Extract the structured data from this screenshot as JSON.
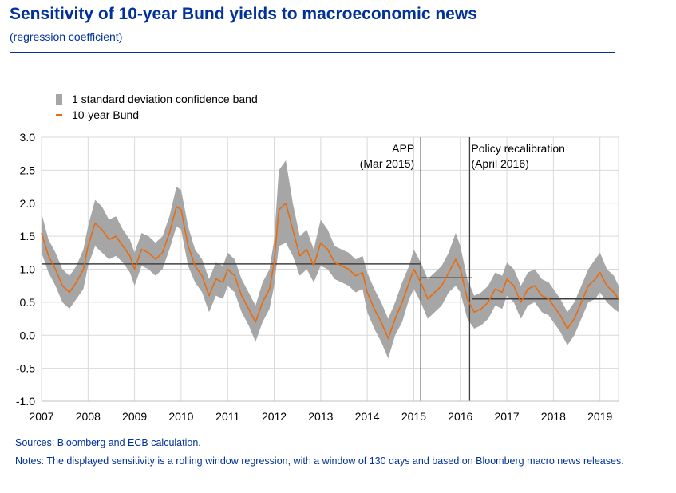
{
  "header": {
    "title": "Sensitivity of 10-year Bund yields to macroeconomic news",
    "subtitle": "(regression coefficient)"
  },
  "legend": {
    "band_label": "1 standard deviation confidence band",
    "line_label": "10-year Bund"
  },
  "footer": {
    "sources": "Sources: Bloomberg and ECB calculation.",
    "notes": "Notes: The displayed sensitivity is a rolling window regression, with a window of 130 days and based on Bloomberg macro news releases."
  },
  "colors": {
    "line": "#e86c0e",
    "band": "#a6a6a6",
    "mean": "#404040",
    "text_blue": "#003299"
  },
  "chart_data": {
    "type": "line",
    "title": "Sensitivity of 10-year Bund yields to macroeconomic news",
    "subtitle": "(regression coefficient)",
    "xlabel": "",
    "ylabel": "",
    "ylim": [
      -1.0,
      3.0
    ],
    "y_ticks": [
      "3.0",
      "2.5",
      "2.0",
      "1.5",
      "1.0",
      "0.5",
      "0.0",
      "-0.5",
      "-1.0"
    ],
    "x_ticks": [
      "2007",
      "2008",
      "2009",
      "2010",
      "2011",
      "2012",
      "2013",
      "2014",
      "2015",
      "2016",
      "2017",
      "2018",
      "2019"
    ],
    "grid": true,
    "legend_position": "top-left",
    "series": [
      {
        "name": "10-year Bund",
        "x": [
          2007.0,
          2007.15,
          2007.3,
          2007.45,
          2007.6,
          2007.75,
          2007.9,
          2008.0,
          2008.15,
          2008.3,
          2008.45,
          2008.6,
          2008.75,
          2008.9,
          2009.0,
          2009.15,
          2009.3,
          2009.45,
          2009.6,
          2009.75,
          2009.9,
          2010.0,
          2010.15,
          2010.3,
          2010.45,
          2010.6,
          2010.75,
          2010.9,
          2011.0,
          2011.15,
          2011.3,
          2011.45,
          2011.6,
          2011.75,
          2011.9,
          2012.0,
          2012.1,
          2012.25,
          2012.4,
          2012.55,
          2012.7,
          2012.85,
          2013.0,
          2013.15,
          2013.3,
          2013.45,
          2013.6,
          2013.75,
          2013.9,
          2014.0,
          2014.15,
          2014.3,
          2014.45,
          2014.6,
          2014.75,
          2014.9,
          2015.0,
          2015.15,
          2015.3,
          2015.45,
          2015.6,
          2015.75,
          2015.9,
          2016.0,
          2016.15,
          2016.3,
          2016.45,
          2016.6,
          2016.75,
          2016.9,
          2017.0,
          2017.15,
          2017.3,
          2017.45,
          2017.6,
          2017.75,
          2017.9,
          2018.0,
          2018.15,
          2018.3,
          2018.45,
          2018.6,
          2018.75,
          2018.9,
          2019.0,
          2019.15,
          2019.3,
          2019.4
        ],
        "values": [
          1.55,
          1.2,
          1.0,
          0.75,
          0.65,
          0.8,
          1.0,
          1.35,
          1.7,
          1.6,
          1.45,
          1.5,
          1.35,
          1.2,
          1.0,
          1.3,
          1.25,
          1.15,
          1.25,
          1.55,
          1.95,
          1.9,
          1.35,
          1.05,
          0.9,
          0.6,
          0.85,
          0.8,
          1.0,
          0.9,
          0.6,
          0.4,
          0.2,
          0.5,
          0.7,
          1.1,
          1.9,
          2.0,
          1.6,
          1.2,
          1.3,
          1.05,
          1.4,
          1.3,
          1.1,
          1.05,
          1.0,
          0.9,
          0.95,
          0.65,
          0.4,
          0.2,
          -0.05,
          0.25,
          0.5,
          0.8,
          1.0,
          0.8,
          0.55,
          0.65,
          0.75,
          0.95,
          1.15,
          1.0,
          0.55,
          0.35,
          0.4,
          0.5,
          0.7,
          0.65,
          0.85,
          0.75,
          0.5,
          0.7,
          0.75,
          0.6,
          0.55,
          0.45,
          0.3,
          0.1,
          0.25,
          0.5,
          0.75,
          0.85,
          0.95,
          0.75,
          0.65,
          0.55
        ]
      },
      {
        "name": "1 standard deviation confidence band",
        "x": [
          2007.0,
          2007.15,
          2007.3,
          2007.45,
          2007.6,
          2007.75,
          2007.9,
          2008.0,
          2008.15,
          2008.3,
          2008.45,
          2008.6,
          2008.75,
          2008.9,
          2009.0,
          2009.15,
          2009.3,
          2009.45,
          2009.6,
          2009.75,
          2009.9,
          2010.0,
          2010.15,
          2010.3,
          2010.45,
          2010.6,
          2010.75,
          2010.9,
          2011.0,
          2011.15,
          2011.3,
          2011.45,
          2011.6,
          2011.75,
          2011.9,
          2012.0,
          2012.1,
          2012.25,
          2012.4,
          2012.55,
          2012.7,
          2012.85,
          2013.0,
          2013.15,
          2013.3,
          2013.45,
          2013.6,
          2013.75,
          2013.9,
          2014.0,
          2014.15,
          2014.3,
          2014.45,
          2014.6,
          2014.75,
          2014.9,
          2015.0,
          2015.15,
          2015.3,
          2015.45,
          2015.6,
          2015.75,
          2015.9,
          2016.0,
          2016.15,
          2016.3,
          2016.45,
          2016.6,
          2016.75,
          2016.9,
          2017.0,
          2017.15,
          2017.3,
          2017.45,
          2017.6,
          2017.75,
          2017.9,
          2018.0,
          2018.15,
          2018.3,
          2018.45,
          2018.6,
          2018.75,
          2018.9,
          2019.0,
          2019.15,
          2019.3,
          2019.4
        ],
        "upper": [
          1.85,
          1.45,
          1.25,
          1.0,
          0.9,
          1.05,
          1.3,
          1.65,
          2.05,
          1.95,
          1.75,
          1.8,
          1.6,
          1.45,
          1.25,
          1.55,
          1.5,
          1.4,
          1.5,
          1.8,
          2.25,
          2.2,
          1.65,
          1.3,
          1.15,
          0.85,
          1.1,
          1.05,
          1.25,
          1.15,
          0.85,
          0.65,
          0.45,
          0.8,
          1.0,
          1.45,
          2.5,
          2.65,
          2.0,
          1.5,
          1.6,
          1.3,
          1.75,
          1.6,
          1.35,
          1.3,
          1.25,
          1.15,
          1.2,
          0.95,
          0.7,
          0.5,
          0.25,
          0.5,
          0.8,
          1.05,
          1.3,
          1.1,
          0.85,
          0.95,
          1.05,
          1.25,
          1.55,
          1.35,
          0.85,
          0.6,
          0.65,
          0.75,
          0.95,
          0.9,
          1.1,
          1.0,
          0.75,
          0.95,
          1.0,
          0.85,
          0.8,
          0.7,
          0.55,
          0.35,
          0.5,
          0.75,
          1.0,
          1.15,
          1.25,
          1.0,
          0.9,
          0.75
        ],
        "lower": [
          1.25,
          0.95,
          0.75,
          0.5,
          0.4,
          0.55,
          0.7,
          1.05,
          1.35,
          1.25,
          1.15,
          1.2,
          1.1,
          0.95,
          0.75,
          1.05,
          1.0,
          0.9,
          1.0,
          1.3,
          1.65,
          1.6,
          1.05,
          0.8,
          0.65,
          0.35,
          0.6,
          0.55,
          0.75,
          0.65,
          0.35,
          0.15,
          -0.1,
          0.2,
          0.4,
          0.75,
          1.35,
          1.4,
          1.2,
          0.9,
          1.0,
          0.8,
          1.05,
          1.0,
          0.85,
          0.8,
          0.75,
          0.65,
          0.7,
          0.35,
          0.1,
          -0.1,
          -0.35,
          0.0,
          0.2,
          0.55,
          0.7,
          0.5,
          0.25,
          0.35,
          0.45,
          0.65,
          0.75,
          0.65,
          0.25,
          0.1,
          0.15,
          0.25,
          0.45,
          0.4,
          0.6,
          0.5,
          0.25,
          0.45,
          0.5,
          0.35,
          0.3,
          0.2,
          0.05,
          -0.15,
          0.0,
          0.25,
          0.5,
          0.55,
          0.65,
          0.5,
          0.4,
          0.35
        ]
      }
    ],
    "mean_levels": [
      {
        "x_start": 2007.0,
        "x_end": 2015.15,
        "value": 1.08
      },
      {
        "x_start": 2015.15,
        "x_end": 2016.25,
        "value": 0.87
      },
      {
        "x_start": 2016.25,
        "x_end": 2019.4,
        "value": 0.55
      }
    ],
    "events": [
      {
        "x": 2015.15,
        "label1": "APP",
        "label2": "(Mar 2015)"
      },
      {
        "x": 2016.2,
        "label1": "Policy recalibration",
        "label2": "(April 2016)"
      }
    ]
  }
}
